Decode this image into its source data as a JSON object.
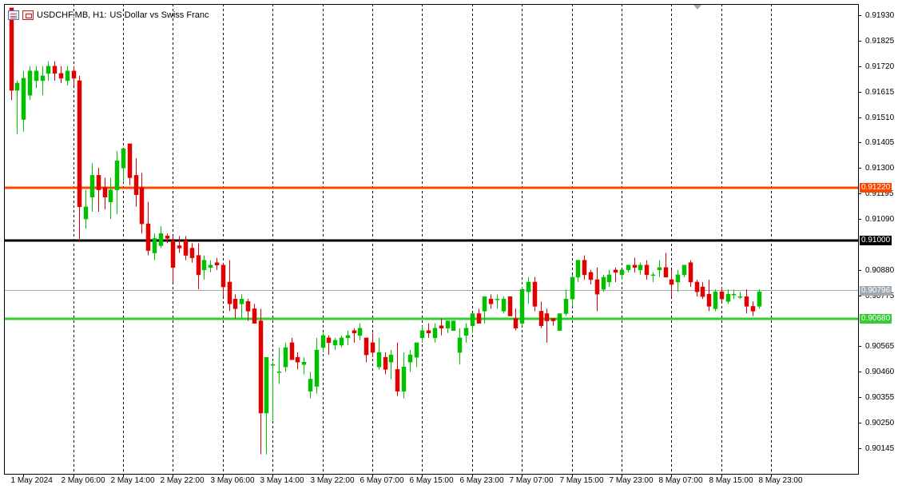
{
  "title": {
    "symbol": "USDCHF.MB, H1:",
    "description": "US Dollar vs Swiss Franc"
  },
  "chart_data": {
    "type": "candlestick",
    "title": "USDCHF.MB, H1:  US Dollar vs Swiss Franc",
    "ylim": [
      0.9008,
      0.91965
    ],
    "price_ticks": [
      "0.91930",
      "0.91825",
      "0.91720",
      "0.91615",
      "0.91510",
      "0.91405",
      "0.91300",
      "0.91195",
      "0.91090",
      "0.90880",
      "0.90775",
      "0.90565",
      "0.90460",
      "0.90355",
      "0.90250",
      "0.90145"
    ],
    "time_ticks": [
      {
        "label": "1 May 2024",
        "index": 2
      },
      {
        "label": "2 May 06:00",
        "index": 10
      },
      {
        "label": "2 May 14:00",
        "index": 18
      },
      {
        "label": "2 May 22:00",
        "index": 26
      },
      {
        "label": "3 May 06:00",
        "index": 34
      },
      {
        "label": "3 May 14:00",
        "index": 42
      },
      {
        "label": "3 May 22:00",
        "index": 50
      },
      {
        "label": "6 May 07:00",
        "index": 58
      },
      {
        "label": "6 May 15:00",
        "index": 66
      },
      {
        "label": "6 May 23:00",
        "index": 74
      },
      {
        "label": "7 May 07:00",
        "index": 82
      },
      {
        "label": "7 May 15:00",
        "index": 90
      },
      {
        "label": "7 May 23:00",
        "index": 98
      },
      {
        "label": "8 May 07:00",
        "index": 106
      },
      {
        "label": "8 May 15:00",
        "index": 114
      },
      {
        "label": "8 May 23:00",
        "index": 122
      }
    ],
    "grid": "vertical dashed at day boundaries",
    "day_separators": [
      26,
      50,
      74,
      98,
      122
    ],
    "horizontal_lines": [
      {
        "price": 0.9122,
        "label": "0.91220",
        "color": "#ff4500"
      },
      {
        "price": 0.91,
        "label": "0.91000",
        "color": "#000000"
      },
      {
        "price": 0.9068,
        "label": "0.90680",
        "color": "#32cd32"
      }
    ],
    "current_price": {
      "price": 0.90796,
      "label": "0.90796",
      "color": "#a0a8b0"
    },
    "bull_color": "#00c000",
    "bear_color": "#e00000",
    "candles": [
      [
        0.9196,
        0.9196,
        0.9158,
        0.9162
      ],
      [
        0.9162,
        0.9166,
        0.9144,
        0.9165
      ],
      [
        0.915,
        0.917,
        0.9145,
        0.9167
      ],
      [
        0.916,
        0.9172,
        0.9158,
        0.917
      ],
      [
        0.9166,
        0.9172,
        0.9163,
        0.917
      ],
      [
        0.9166,
        0.9172,
        0.916,
        0.9168
      ],
      [
        0.9169,
        0.9174,
        0.9166,
        0.9172
      ],
      [
        0.9172,
        0.9174,
        0.9166,
        0.9169
      ],
      [
        0.9169,
        0.9172,
        0.9165,
        0.9167
      ],
      [
        0.9166,
        0.9172,
        0.9164,
        0.917
      ],
      [
        0.917,
        0.9172,
        0.9164,
        0.9167
      ],
      [
        0.9166,
        0.9168,
        0.91,
        0.9114
      ],
      [
        0.9109,
        0.9121,
        0.9105,
        0.9114
      ],
      [
        0.9118,
        0.9132,
        0.9112,
        0.9127
      ],
      [
        0.9127,
        0.913,
        0.9112,
        0.9121
      ],
      [
        0.9122,
        0.9126,
        0.9113,
        0.9118
      ],
      [
        0.9116,
        0.9126,
        0.9109,
        0.9121
      ],
      [
        0.9121,
        0.9137,
        0.9111,
        0.9133
      ],
      [
        0.913,
        0.9138,
        0.9124,
        0.9138
      ],
      [
        0.914,
        0.914,
        0.9123,
        0.9126
      ],
      [
        0.9127,
        0.9134,
        0.9114,
        0.9119
      ],
      [
        0.9122,
        0.9128,
        0.9103,
        0.9107
      ],
      [
        0.9107,
        0.9116,
        0.9094,
        0.9096
      ],
      [
        0.9095,
        0.9103,
        0.9092,
        0.9101
      ],
      [
        0.9098,
        0.9106,
        0.9097,
        0.9103
      ],
      [
        0.9102,
        0.9103,
        0.9099,
        0.9101
      ],
      [
        0.91,
        0.9102,
        0.9083,
        0.9089
      ],
      [
        0.9098,
        0.9102,
        0.9095,
        0.9097
      ],
      [
        0.91,
        0.9102,
        0.9092,
        0.9094
      ],
      [
        0.9097,
        0.9099,
        0.9091,
        0.9093
      ],
      [
        0.9094,
        0.9099,
        0.908,
        0.9086
      ],
      [
        0.9088,
        0.9094,
        0.9084,
        0.9092
      ],
      [
        0.9089,
        0.9092,
        0.9087,
        0.909
      ],
      [
        0.9091,
        0.9093,
        0.9088,
        0.909
      ],
      [
        0.909,
        0.9091,
        0.9077,
        0.9081
      ],
      [
        0.9083,
        0.9092,
        0.9071,
        0.9074
      ],
      [
        0.9076,
        0.9078,
        0.9068,
        0.9072
      ],
      [
        0.9074,
        0.9078,
        0.9068,
        0.9076
      ],
      [
        0.9075,
        0.9076,
        0.9067,
        0.9071
      ],
      [
        0.9072,
        0.9074,
        0.9066,
        0.9066
      ],
      [
        0.9067,
        0.9072,
        0.9012,
        0.9029
      ],
      [
        0.9029,
        0.9052,
        0.9012,
        0.9052
      ],
      [
        0.9049,
        0.905,
        0.9026,
        0.9049
      ],
      [
        0.9046,
        0.9056,
        0.9041,
        0.9046
      ],
      [
        0.9048,
        0.9058,
        0.9046,
        0.9056
      ],
      [
        0.9058,
        0.906,
        0.9051,
        0.9051
      ],
      [
        0.9052,
        0.9054,
        0.9047,
        0.905
      ],
      [
        0.9049,
        0.9052,
        0.9045,
        0.905
      ],
      [
        0.9038,
        0.9046,
        0.9035,
        0.9043
      ],
      [
        0.904,
        0.906,
        0.9037,
        0.9055
      ],
      [
        0.9056,
        0.9062,
        0.9054,
        0.9061
      ],
      [
        0.906,
        0.9061,
        0.9053,
        0.9058
      ],
      [
        0.9057,
        0.906,
        0.9055,
        0.9059
      ],
      [
        0.9057,
        0.9061,
        0.9056,
        0.906
      ],
      [
        0.906,
        0.9063,
        0.9057,
        0.9061
      ],
      [
        0.9063,
        0.9064,
        0.9058,
        0.9062
      ],
      [
        0.9061,
        0.9066,
        0.9059,
        0.9064
      ],
      [
        0.906,
        0.906,
        0.905,
        0.9053
      ],
      [
        0.9058,
        0.9062,
        0.9052,
        0.9054
      ],
      [
        0.9048,
        0.906,
        0.9047,
        0.9054
      ],
      [
        0.9052,
        0.9054,
        0.9045,
        0.9047
      ],
      [
        0.905,
        0.9055,
        0.9043,
        0.9053
      ],
      [
        0.9047,
        0.9058,
        0.9036,
        0.9038
      ],
      [
        0.9038,
        0.9054,
        0.9035,
        0.9048
      ],
      [
        0.905,
        0.9055,
        0.9046,
        0.9053
      ],
      [
        0.9052,
        0.9057,
        0.9048,
        0.9058
      ],
      [
        0.906,
        0.9065,
        0.9058,
        0.9063
      ],
      [
        0.9063,
        0.9066,
        0.906,
        0.9062
      ],
      [
        0.906,
        0.9066,
        0.9058,
        0.9064
      ],
      [
        0.9065,
        0.9068,
        0.9061,
        0.9064
      ],
      [
        0.9064,
        0.9067,
        0.9062,
        0.9067
      ],
      [
        0.9063,
        0.9067,
        0.9063,
        0.9067
      ],
      [
        0.9054,
        0.9064,
        0.9049,
        0.906
      ],
      [
        0.9061,
        0.9066,
        0.9058,
        0.9064
      ],
      [
        0.9065,
        0.907,
        0.9062,
        0.907
      ],
      [
        0.907,
        0.9072,
        0.9066,
        0.9066
      ],
      [
        0.9071,
        0.9077,
        0.9066,
        0.9077
      ],
      [
        0.9076,
        0.9078,
        0.9072,
        0.9074
      ],
      [
        0.9076,
        0.9078,
        0.9072,
        0.9076
      ],
      [
        0.9071,
        0.9077,
        0.907,
        0.9076
      ],
      [
        0.9077,
        0.9077,
        0.9069,
        0.9069
      ],
      [
        0.9068,
        0.9072,
        0.9063,
        0.9064
      ],
      [
        0.9066,
        0.9081,
        0.9065,
        0.908
      ],
      [
        0.9079,
        0.9085,
        0.9074,
        0.9083
      ],
      [
        0.9083,
        0.9085,
        0.9071,
        0.9073
      ],
      [
        0.9071,
        0.9075,
        0.9064,
        0.9065
      ],
      [
        0.907,
        0.9072,
        0.9058,
        0.9067
      ],
      [
        0.9068,
        0.9068,
        0.9065,
        0.9067
      ],
      [
        0.9063,
        0.907,
        0.9063,
        0.907
      ],
      [
        0.907,
        0.908,
        0.9069,
        0.9076
      ],
      [
        0.9076,
        0.9086,
        0.9073,
        0.9085
      ],
      [
        0.9085,
        0.9092,
        0.9083,
        0.9092
      ],
      [
        0.9092,
        0.9094,
        0.9084,
        0.9086
      ],
      [
        0.9087,
        0.9088,
        0.9082,
        0.9084
      ],
      [
        0.9084,
        0.9089,
        0.9071,
        0.9078
      ],
      [
        0.908,
        0.9086,
        0.9079,
        0.9085
      ],
      [
        0.9083,
        0.9088,
        0.9081,
        0.9086
      ],
      [
        0.9088,
        0.9089,
        0.9083,
        0.9087
      ],
      [
        0.9086,
        0.9088,
        0.9084,
        0.9088
      ],
      [
        0.9088,
        0.909,
        0.9087,
        0.909
      ],
      [
        0.909,
        0.9093,
        0.9087,
        0.9089
      ],
      [
        0.9088,
        0.9091,
        0.9086,
        0.909
      ],
      [
        0.909,
        0.9092,
        0.9084,
        0.9086
      ],
      [
        0.9086,
        0.9087,
        0.9083,
        0.9086
      ],
      [
        0.9088,
        0.9092,
        0.9085,
        0.9089
      ],
      [
        0.9089,
        0.9095,
        0.9085,
        0.9085
      ],
      [
        0.9084,
        0.9088,
        0.9077,
        0.9082
      ],
      [
        0.9083,
        0.9088,
        0.9079,
        0.9086
      ],
      [
        0.9086,
        0.909,
        0.9085,
        0.909
      ],
      [
        0.9091,
        0.9092,
        0.9081,
        0.9083
      ],
      [
        0.9083,
        0.9084,
        0.9077,
        0.9079
      ],
      [
        0.9081,
        0.9083,
        0.9076,
        0.9077
      ],
      [
        0.9078,
        0.9084,
        0.9071,
        0.9073
      ],
      [
        0.9072,
        0.908,
        0.9071,
        0.9079
      ],
      [
        0.9079,
        0.9081,
        0.9075,
        0.9076
      ],
      [
        0.9075,
        0.908,
        0.9074,
        0.9078
      ],
      [
        0.9078,
        0.908,
        0.9076,
        0.9078
      ],
      [
        0.9077,
        0.9079,
        0.9076,
        0.9077
      ],
      [
        0.9077,
        0.908,
        0.907,
        0.9073
      ],
      [
        0.9073,
        0.9075,
        0.9069,
        0.9071
      ],
      [
        0.9073,
        0.908,
        0.9072,
        0.9079
      ]
    ]
  }
}
